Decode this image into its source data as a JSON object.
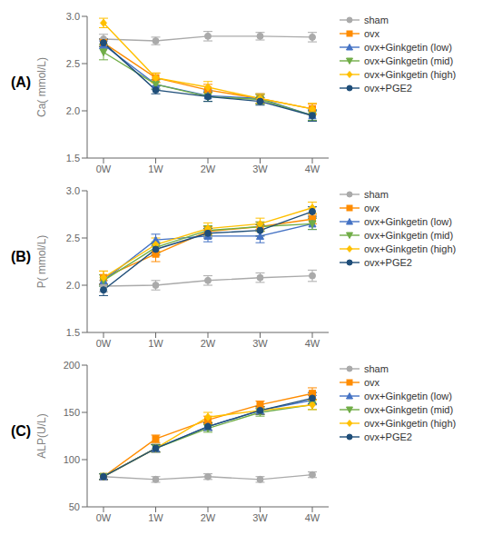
{
  "chart_data": [
    {
      "type": "line",
      "annotations": [
        "(A)"
      ],
      "y_label": "Ca( mmol/L)",
      "categories": [
        "0W",
        "1W",
        "2W",
        "3W",
        "4W"
      ],
      "ylim": [
        1.5,
        3.0
      ],
      "yticks": [
        1.5,
        {
          "value": 2.0,
          "label": "2.0"
        },
        2.5,
        {
          "value": 3.0,
          "label": "3.0"
        }
      ],
      "grid": false,
      "legend": "right",
      "series": [
        {
          "name": "sham",
          "color": "#AAAAAA",
          "marker": "circle",
          "values": [
            2.76,
            2.74,
            2.79,
            2.79,
            2.78
          ],
          "errors": [
            0.05,
            0.04,
            0.05,
            0.04,
            0.05
          ]
        },
        {
          "name": "ovx",
          "color": "#FF8C00",
          "marker": "square",
          "values": [
            2.72,
            2.35,
            2.22,
            2.13,
            2.02
          ],
          "errors": [
            0.04,
            0.05,
            0.06,
            0.05,
            0.05
          ]
        },
        {
          "name": "ovx+Ginkgetin (low)",
          "color": "#4472C4",
          "marker": "triangle-up",
          "values": [
            2.7,
            2.28,
            2.16,
            2.13,
            1.95
          ],
          "errors": [
            0.04,
            0.05,
            0.06,
            0.05,
            0.05
          ]
        },
        {
          "name": "ovx+Ginkgetin (mid)",
          "color": "#70AD47",
          "marker": "triangle-down",
          "values": [
            2.62,
            2.28,
            2.15,
            2.12,
            1.95
          ],
          "errors": [
            0.08,
            0.05,
            0.05,
            0.05,
            0.05
          ]
        },
        {
          "name": "ovx+Ginkgetin (high)",
          "color": "#FFC000",
          "marker": "diamond",
          "values": [
            2.93,
            2.35,
            2.25,
            2.13,
            2.02
          ],
          "errors": [
            0.05,
            0.05,
            0.06,
            0.05,
            0.06
          ]
        },
        {
          "name": "ovx+PGE2",
          "color": "#1F4E79",
          "marker": "circle",
          "values": [
            2.72,
            2.22,
            2.15,
            2.1,
            1.95
          ],
          "errors": [
            0.04,
            0.04,
            0.05,
            0.04,
            0.06
          ]
        }
      ]
    },
    {
      "type": "line",
      "annotations": [
        "(B)"
      ],
      "y_label": "P( mmol/L)",
      "categories": [
        "0W",
        "1W",
        "2W",
        "3W",
        "4W"
      ],
      "ylim": [
        1.5,
        3.0
      ],
      "yticks": [
        1.5,
        {
          "value": 2.0,
          "label": "2.0"
        },
        2.5,
        {
          "value": 3.0,
          "label": "3.0"
        }
      ],
      "grid": false,
      "legend": "right",
      "series": [
        {
          "name": "sham",
          "color": "#AAAAAA",
          "marker": "circle",
          "values": [
            1.99,
            2.0,
            2.05,
            2.08,
            2.1
          ],
          "errors": [
            0.06,
            0.05,
            0.05,
            0.05,
            0.06
          ]
        },
        {
          "name": "ovx",
          "color": "#FF8C00",
          "marker": "square",
          "values": [
            2.08,
            2.33,
            2.57,
            2.62,
            2.7
          ],
          "errors": [
            0.07,
            0.08,
            0.05,
            0.05,
            0.05
          ]
        },
        {
          "name": "ovx+Ginkgetin (low)",
          "color": "#4472C4",
          "marker": "triangle-up",
          "values": [
            2.05,
            2.48,
            2.52,
            2.52,
            2.65
          ],
          "errors": [
            0.06,
            0.06,
            0.06,
            0.07,
            0.06
          ]
        },
        {
          "name": "ovx+Ginkgetin (mid)",
          "color": "#70AD47",
          "marker": "triangle-down",
          "values": [
            2.05,
            2.4,
            2.58,
            2.62,
            2.65
          ],
          "errors": [
            0.06,
            0.06,
            0.05,
            0.05,
            0.06
          ]
        },
        {
          "name": "ovx+Ginkgetin (high)",
          "color": "#FFC000",
          "marker": "diamond",
          "values": [
            2.08,
            2.43,
            2.6,
            2.65,
            2.82
          ],
          "errors": [
            0.07,
            0.07,
            0.06,
            0.06,
            0.06
          ]
        },
        {
          "name": "ovx+PGE2",
          "color": "#1F4E79",
          "marker": "circle",
          "values": [
            1.95,
            2.38,
            2.55,
            2.58,
            2.78
          ],
          "errors": [
            0.06,
            0.06,
            0.05,
            0.06,
            0.05
          ]
        }
      ]
    },
    {
      "type": "line",
      "annotations": [
        "(C)"
      ],
      "y_label": "ALP(U/L)",
      "categories": [
        "0W",
        "1W",
        "2W",
        "3W",
        "4W"
      ],
      "ylim": [
        50,
        200
      ],
      "yticks": [
        50,
        100,
        150,
        200
      ],
      "grid": false,
      "legend": "right",
      "series": [
        {
          "name": "sham",
          "color": "#AAAAAA",
          "marker": "circle",
          "values": [
            82,
            79,
            82,
            79,
            84
          ],
          "errors": [
            3,
            3,
            3,
            3,
            3
          ]
        },
        {
          "name": "ovx",
          "color": "#FF8C00",
          "marker": "square",
          "values": [
            82,
            122,
            142,
            158,
            170
          ],
          "errors": [
            3,
            4,
            4,
            4,
            6
          ]
        },
        {
          "name": "ovx+Ginkgetin (low)",
          "color": "#4472C4",
          "marker": "triangle-up",
          "values": [
            82,
            112,
            135,
            152,
            163
          ],
          "errors": [
            3,
            4,
            4,
            4,
            5
          ]
        },
        {
          "name": "ovx+Ginkgetin (mid)",
          "color": "#70AD47",
          "marker": "triangle-down",
          "values": [
            82,
            112,
            133,
            150,
            158
          ],
          "errors": [
            3,
            4,
            4,
            4,
            5
          ]
        },
        {
          "name": "ovx+Ginkgetin (high)",
          "color": "#FFC000",
          "marker": "diamond",
          "values": [
            82,
            112,
            145,
            152,
            158
          ],
          "errors": [
            3,
            4,
            5,
            4,
            5
          ]
        },
        {
          "name": "ovx+PGE2",
          "color": "#1F4E79",
          "marker": "circle",
          "values": [
            82,
            112,
            135,
            152,
            165
          ],
          "errors": [
            3,
            4,
            4,
            4,
            6
          ]
        }
      ]
    }
  ]
}
